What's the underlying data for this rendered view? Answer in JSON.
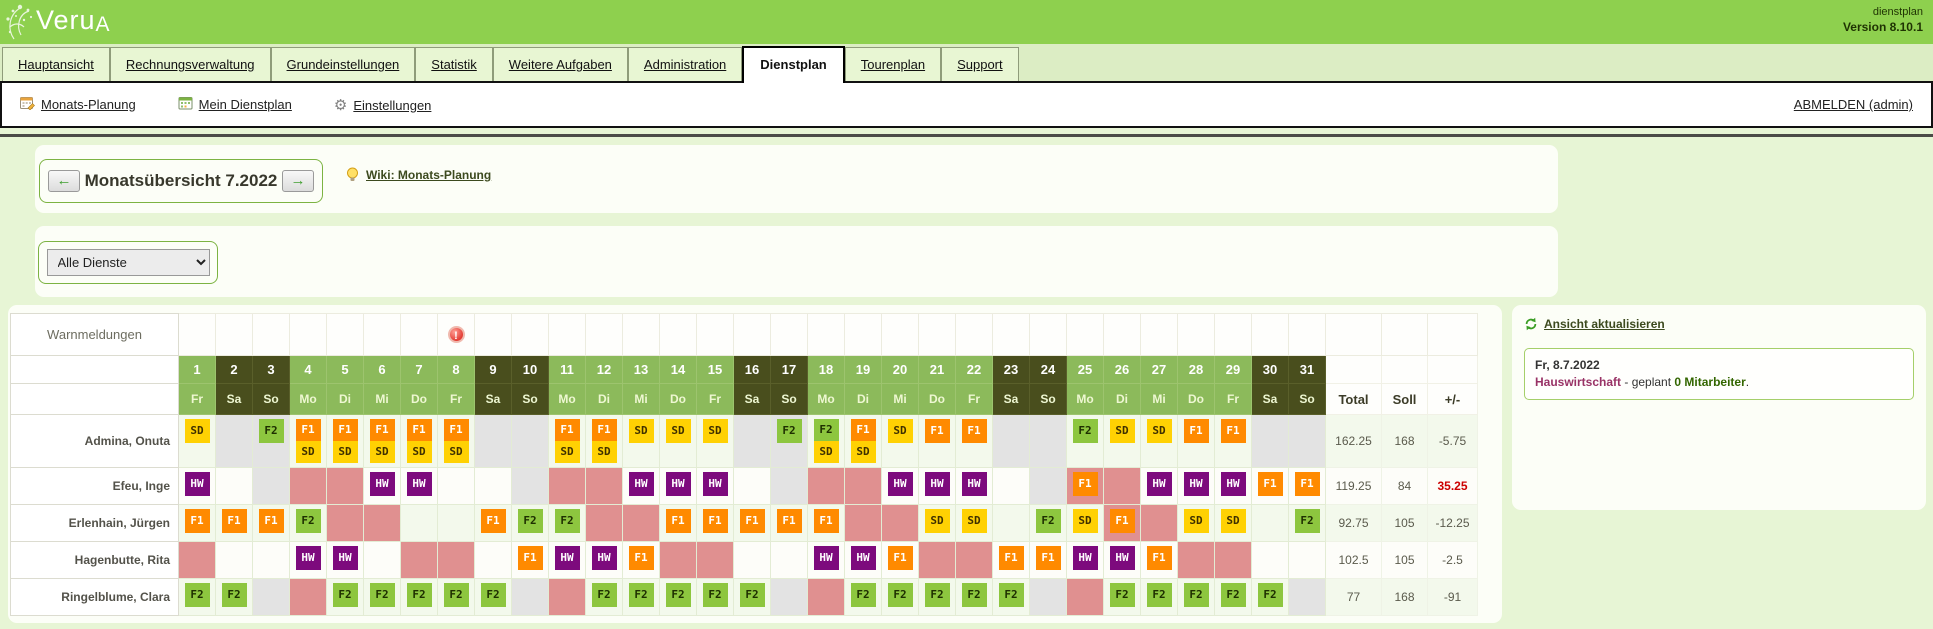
{
  "header": {
    "logo_main": "Veru",
    "logo_sub": "A",
    "app_label": "dienstplan",
    "version": "Version 8.10.1",
    "bar_color": "#8ed04e"
  },
  "tabs": [
    {
      "label": "Hauptansicht",
      "active": false
    },
    {
      "label": "Rechnungsverwaltung",
      "active": false
    },
    {
      "label": "Grundeinstellungen",
      "active": false
    },
    {
      "label": "Statistik",
      "active": false
    },
    {
      "label": "Weitere Aufgaben",
      "active": false
    },
    {
      "label": "Administration",
      "active": false
    },
    {
      "label": "Dienstplan",
      "active": true
    },
    {
      "label": "Tourenplan",
      "active": false
    },
    {
      "label": "Support",
      "active": false
    }
  ],
  "toolbar": {
    "items": [
      {
        "label": "Monats-Planung",
        "icon": "calendar-edit-icon"
      },
      {
        "label": "Mein Dienstplan",
        "icon": "calendar-icon"
      },
      {
        "label": "Einstellungen",
        "icon": "gear-icon"
      }
    ],
    "logout": "ABMELDEN (admin)"
  },
  "month_nav": {
    "title": "Monatsübersicht 7.2022",
    "wiki_link": "Wiki: Monats-Planung"
  },
  "filter": {
    "selected": "Alle Dienste"
  },
  "side_panel": {
    "refresh_link": "Ansicht aktualisieren",
    "info_date": "Fr, 8.7.2022",
    "info_unit": "Hauswirtschaft",
    "info_sep": " - geplant ",
    "info_count": "0 Mitarbeiter",
    "info_end": "."
  },
  "roster": {
    "warn_label": "Warnmeldungen",
    "warning_day": 8,
    "totals_headers": [
      "Total",
      "Soll",
      "+/-"
    ],
    "days": [
      {
        "d": "1",
        "w": "Fr",
        "we": false
      },
      {
        "d": "2",
        "w": "Sa",
        "we": true
      },
      {
        "d": "3",
        "w": "So",
        "we": true
      },
      {
        "d": "4",
        "w": "Mo",
        "we": false
      },
      {
        "d": "5",
        "w": "Di",
        "we": false
      },
      {
        "d": "6",
        "w": "Mi",
        "we": false
      },
      {
        "d": "7",
        "w": "Do",
        "we": false
      },
      {
        "d": "8",
        "w": "Fr",
        "we": false
      },
      {
        "d": "9",
        "w": "Sa",
        "we": true
      },
      {
        "d": "10",
        "w": "So",
        "we": true
      },
      {
        "d": "11",
        "w": "Mo",
        "we": false
      },
      {
        "d": "12",
        "w": "Di",
        "we": false
      },
      {
        "d": "13",
        "w": "Mi",
        "we": false
      },
      {
        "d": "14",
        "w": "Do",
        "we": false
      },
      {
        "d": "15",
        "w": "Fr",
        "we": false
      },
      {
        "d": "16",
        "w": "Sa",
        "we": true
      },
      {
        "d": "17",
        "w": "So",
        "we": true
      },
      {
        "d": "18",
        "w": "Mo",
        "we": false
      },
      {
        "d": "19",
        "w": "Di",
        "we": false
      },
      {
        "d": "20",
        "w": "Mi",
        "we": false
      },
      {
        "d": "21",
        "w": "Do",
        "we": false
      },
      {
        "d": "22",
        "w": "Fr",
        "we": false
      },
      {
        "d": "23",
        "w": "Sa",
        "we": true
      },
      {
        "d": "24",
        "w": "So",
        "we": true
      },
      {
        "d": "25",
        "w": "Mo",
        "we": false
      },
      {
        "d": "26",
        "w": "Di",
        "we": false
      },
      {
        "d": "27",
        "w": "Mi",
        "we": false
      },
      {
        "d": "28",
        "w": "Do",
        "we": false
      },
      {
        "d": "29",
        "w": "Fr",
        "we": false
      },
      {
        "d": "30",
        "w": "Sa",
        "we": true
      },
      {
        "d": "31",
        "w": "So",
        "we": true
      }
    ],
    "shift_types": {
      "SD": {
        "bg": "#ffd103",
        "fg": "#3f3000"
      },
      "F1": {
        "bg": "#ff8a00",
        "fg": "#ffffff"
      },
      "F2": {
        "bg": "#8dc63f",
        "fg": "#1e2f00"
      },
      "HW": {
        "bg": "#7d0a7d",
        "fg": "#ffffff"
      }
    },
    "cell_colors": {
      "pink": "#e09090",
      "gray": "#e3e3e3"
    },
    "employees": [
      {
        "name": "Admina, Onuta",
        "total": "162.25",
        "soll": "168",
        "diff": "-5.75",
        "diff_red": false,
        "tall": true,
        "cells": [
          "SD",
          "g",
          "g:F2",
          "F1,SD",
          "F1,SD",
          "F1,SD",
          "F1,SD",
          "F1,SD",
          "g",
          "g",
          "F1,SD",
          "F1,SD",
          "SD",
          "SD",
          "SD",
          "g",
          "g:F2",
          "F2,SD",
          "F1,SD",
          "SD",
          "F1",
          "F1",
          "g",
          "g",
          "F2",
          "SD",
          "SD",
          "F1",
          "F1",
          "g",
          "g"
        ]
      },
      {
        "name": "Efeu, Inge",
        "total": "119.25",
        "soll": "84",
        "diff": "35.25",
        "diff_red": true,
        "tall": false,
        "cells": [
          "HW",
          "",
          "g",
          "p",
          "p",
          "HW",
          "HW",
          "",
          "",
          "g",
          "p",
          "p",
          "HW",
          "HW",
          "HW",
          "",
          "g",
          "p",
          "p",
          "HW",
          "HW",
          "HW",
          "",
          "g",
          "p:F1",
          "p",
          "HW",
          "HW",
          "HW",
          "F1",
          "F1"
        ]
      },
      {
        "name": "Erlenhain, Jürgen",
        "total": "92.75",
        "soll": "105",
        "diff": "-12.25",
        "diff_red": false,
        "tall": false,
        "cells": [
          "F1",
          "F1",
          "F1",
          "F2",
          "p",
          "p",
          "",
          "",
          "F1",
          "F2",
          "F2",
          "p",
          "p",
          "F1",
          "F1",
          "F1",
          "F1",
          "F1",
          "p",
          "p",
          "SD",
          "SD",
          "",
          "F2",
          "SD",
          "p:F1",
          "p",
          "SD",
          "SD",
          "",
          "F2"
        ]
      },
      {
        "name": "Hagenbutte, Rita",
        "total": "102.5",
        "soll": "105",
        "diff": "-2.5",
        "diff_red": false,
        "tall": false,
        "cells": [
          "p",
          "",
          "",
          "HW",
          "HW",
          "",
          "p",
          "p",
          "",
          "F1",
          "HW",
          "HW",
          "F1",
          "p",
          "p",
          "",
          "",
          "HW",
          "HW",
          "F1",
          "p",
          "p",
          "F1",
          "F1",
          "HW",
          "HW",
          "F1",
          "p",
          "p",
          "",
          ""
        ]
      },
      {
        "name": "Ringelblume, Clara",
        "total": "77",
        "soll": "168",
        "diff": "-91",
        "diff_red": false,
        "tall": false,
        "cells": [
          "F2",
          "F2",
          "g",
          "p",
          "F2",
          "F2",
          "F2",
          "F2",
          "F2",
          "g",
          "p",
          "F2",
          "F2",
          "F2",
          "F2",
          "F2",
          "g",
          "p",
          "F2",
          "F2",
          "F2",
          "F2",
          "F2",
          "g",
          "p",
          "F2",
          "F2",
          "F2",
          "F2",
          "F2",
          "g"
        ]
      }
    ]
  }
}
